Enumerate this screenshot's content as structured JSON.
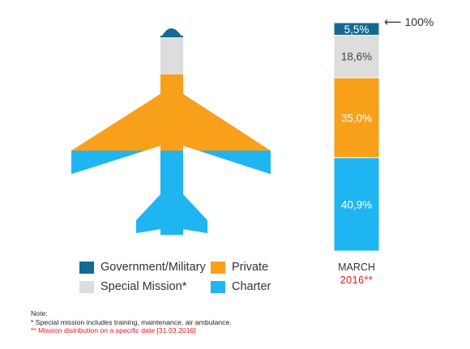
{
  "colors": {
    "government": "#146b92",
    "special": "#dddddd",
    "private": "#f8a01a",
    "charter": "#1fb5f2",
    "accent_red": "#e8141b"
  },
  "chart_data": {
    "type": "bar",
    "stacked": true,
    "categories": [
      "MARCH 2016**"
    ],
    "series": [
      {
        "name": "Charter",
        "values": [
          40.9
        ],
        "label": "40,9%"
      },
      {
        "name": "Private",
        "values": [
          35.0
        ],
        "label": "35,0%"
      },
      {
        "name": "Special Mission*",
        "values": [
          18.6
        ],
        "label": "18,6%"
      },
      {
        "name": "Government/Military",
        "values": [
          5.5
        ],
        "label": "5,5%"
      }
    ],
    "ylim": [
      0,
      100
    ],
    "total_label": "100%",
    "legend": [
      "Government/Military",
      "Private",
      "Special Mission*",
      "Charter"
    ],
    "legend_position": "bottom-left"
  },
  "month": {
    "line1": "MARCH",
    "line2": "2016**"
  },
  "notes": {
    "heading": "Note:",
    "line1": "* Special mission includes training, maintenance, air ambulance.",
    "line2": "** Mission distribution on a specific date [31.03.2016]"
  }
}
